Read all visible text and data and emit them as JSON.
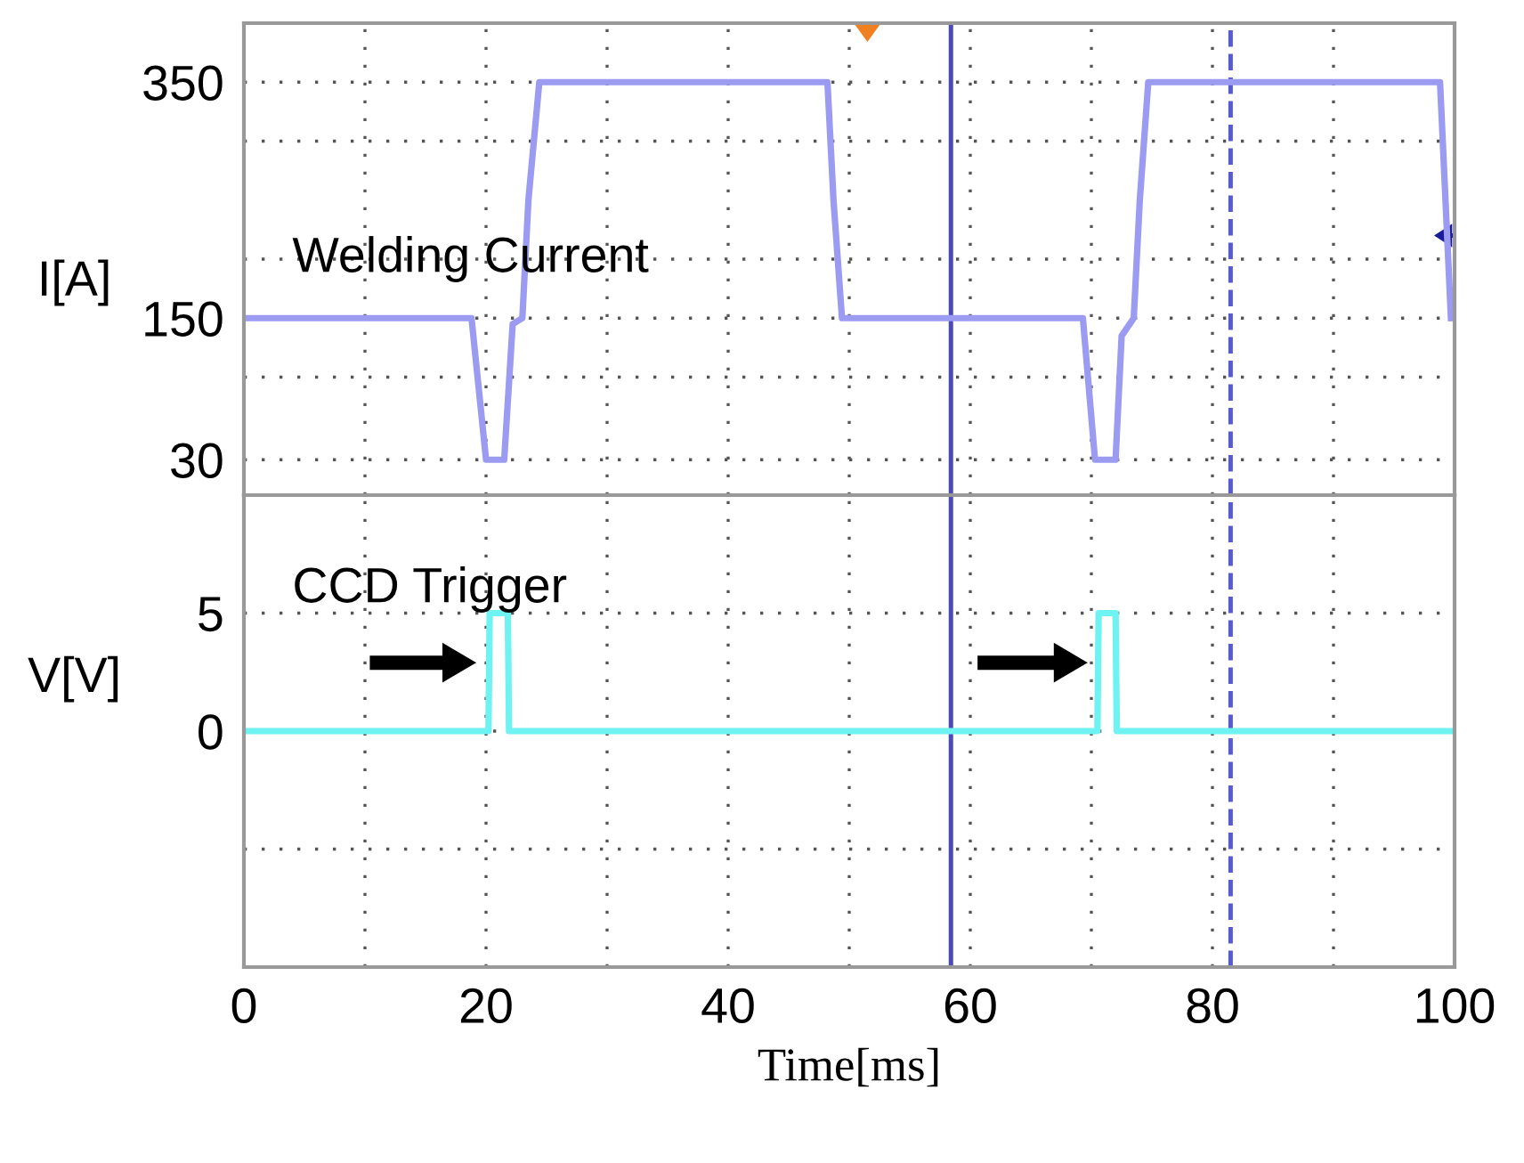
{
  "chart_data": [
    {
      "type": "line",
      "ylabel": "I[A]",
      "annotations": [
        "Welding Current"
      ],
      "xlim": [
        0,
        100
      ],
      "xticks": [
        0,
        {
          "value": 10,
          "label": null
        },
        20,
        {
          "value": 30,
          "label": null
        },
        40,
        {
          "value": 50,
          "label": null
        },
        60,
        {
          "value": 70,
          "label": null
        },
        80,
        {
          "value": 90,
          "label": null
        },
        100
      ],
      "ylim": [
        0,
        400
      ],
      "yticks": [
        30,
        {
          "value": 100,
          "label": null
        },
        150,
        {
          "value": 200,
          "label": null
        },
        {
          "value": 300,
          "label": null
        },
        350
      ],
      "tick_labels": "y",
      "grid": true,
      "line_style": "solid",
      "marker": "none",
      "legend": false,
      "ref_lines": [
        {
          "axis": "x",
          "value": 58.4,
          "color": "#4a4ab8",
          "line_style": "solid"
        },
        {
          "axis": "x",
          "value": 81.5,
          "color": "#5a5ad0",
          "line_style": "dashed"
        }
      ],
      "series": [
        {
          "color": "#9b9bf2",
          "x": [
            0,
            18.8,
            20.0,
            21.5,
            22.2,
            23.0,
            23.5,
            24.4,
            48.2,
            48.7,
            49.4,
            69.3,
            70.3,
            72.0,
            72.5,
            73.5,
            74.0,
            74.7,
            98.8,
            99.7
          ],
          "values": [
            150,
            150,
            30,
            30,
            145,
            150,
            250,
            350,
            350,
            250,
            150,
            150,
            30,
            30,
            135,
            150,
            250,
            350,
            350,
            150
          ]
        }
      ]
    },
    {
      "type": "line",
      "ylabel": "V[V]",
      "xlabel": "Time[ms]",
      "annotations": [
        "CCD Trigger"
      ],
      "xlim": [
        0,
        100
      ],
      "xticks": [
        0,
        {
          "value": 10,
          "label": null
        },
        20,
        {
          "value": 30,
          "label": null
        },
        40,
        {
          "value": 50,
          "label": null
        },
        60,
        {
          "value": 70,
          "label": null
        },
        80,
        {
          "value": 90,
          "label": null
        },
        100
      ],
      "ylim": [
        -10,
        10
      ],
      "yticks": [
        {
          "value": -5,
          "label": null
        },
        0,
        5
      ],
      "grid": true,
      "line_style": "solid",
      "marker": "none",
      "legend": false,
      "ref_lines": [
        {
          "axis": "x",
          "value": 58.4,
          "color": "#4a4ab8",
          "line_style": "solid"
        },
        {
          "axis": "x",
          "value": 81.5,
          "color": "#5a5ad0",
          "line_style": "dashed"
        }
      ],
      "series": [
        {
          "color": "#6ef2f2",
          "x": [
            0,
            20.2,
            20.3,
            21.8,
            21.9,
            70.5,
            70.6,
            72.0,
            72.1,
            99.7
          ],
          "values": [
            0,
            0,
            5,
            5,
            0,
            0,
            5,
            5,
            0,
            0
          ]
        }
      ]
    }
  ]
}
